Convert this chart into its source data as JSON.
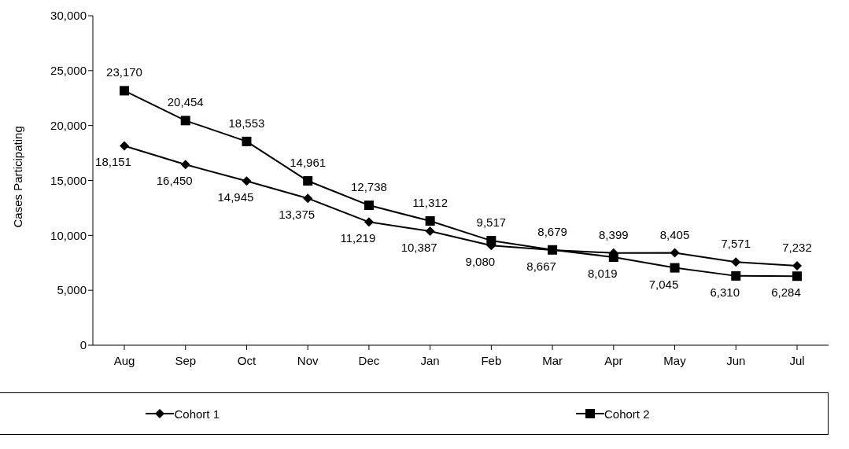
{
  "chart_data": {
    "type": "line",
    "ylabel": "Cases Participating",
    "categories": [
      "Aug",
      "Sep",
      "Oct",
      "Nov",
      "Dec",
      "Jan",
      "Feb",
      "Mar",
      "Apr",
      "May",
      "Jun",
      "Jul"
    ],
    "series": [
      {
        "name": "Cohort 1",
        "color": "#000000",
        "marker": "diamond",
        "values": [
          18151,
          16450,
          14945,
          13375,
          11219,
          10387,
          9080,
          8667,
          8399,
          8405,
          7571,
          7232
        ],
        "value_labels": [
          "18,151",
          "16,450",
          "14,945",
          "13,375",
          "11,219",
          "10,387",
          "9,080",
          "8,667",
          "8,399",
          "8,405",
          "7,571",
          "7,232"
        ]
      },
      {
        "name": "Cohort 2",
        "color": "#000000",
        "marker": "square",
        "values": [
          23170,
          20454,
          18553,
          14961,
          12738,
          11312,
          9517,
          8679,
          8019,
          7045,
          6310,
          6284
        ],
        "value_labels": [
          "23,170",
          "20,454",
          "18,553",
          "14,961",
          "12,738",
          "11,312",
          "9,517",
          "8,679",
          "8,019",
          "7,045",
          "6,310",
          "6,284"
        ]
      }
    ],
    "ylim": [
      0,
      30000
    ],
    "yticks": [
      0,
      {
        "value": 5000,
        "label": "5,000"
      },
      {
        "value": 10000,
        "label": "10,000"
      },
      {
        "value": 15000,
        "label": "15,000"
      },
      {
        "value": 20000,
        "label": "20,000"
      },
      {
        "value": 25000,
        "label": "25,000"
      },
      {
        "value": 30000,
        "label": "30,000"
      }
    ],
    "grid": false,
    "legend": "bottom",
    "line_style": "solid"
  }
}
